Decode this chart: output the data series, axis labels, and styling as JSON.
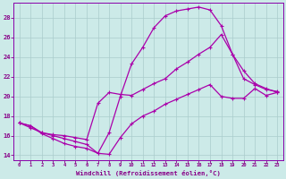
{
  "xlabel": "Windchill (Refroidissement éolien,°C)",
  "bg_color": "#cceae8",
  "line_color": "#aa00aa",
  "grid_color": "#aacccc",
  "axis_color": "#8800aa",
  "tick_label_color": "#880088",
  "xlabel_color": "#880088",
  "xlim": [
    -0.5,
    23.5
  ],
  "ylim": [
    13.5,
    29.5
  ],
  "xticks": [
    0,
    1,
    2,
    3,
    4,
    5,
    6,
    7,
    8,
    9,
    10,
    11,
    12,
    13,
    14,
    15,
    16,
    17,
    18,
    19,
    20,
    21,
    22,
    23
  ],
  "yticks": [
    14,
    16,
    18,
    20,
    22,
    24,
    26,
    28
  ],
  "line1_x": [
    0,
    1,
    2,
    3,
    4,
    5,
    6,
    7,
    8,
    9,
    10,
    11,
    12,
    13,
    14,
    15,
    16,
    17,
    18,
    19,
    20,
    21,
    22,
    23
  ],
  "line1_y": [
    17.3,
    17.0,
    16.2,
    15.7,
    15.2,
    14.9,
    14.7,
    14.2,
    16.3,
    20.0,
    23.3,
    25.0,
    27.0,
    28.2,
    28.7,
    28.9,
    29.1,
    28.8,
    27.2,
    24.3,
    21.8,
    21.2,
    20.7,
    20.5
  ],
  "line2_x": [
    0,
    1,
    2,
    3,
    4,
    5,
    6,
    7,
    8,
    9,
    10,
    11,
    12,
    13,
    14,
    15,
    16,
    17,
    18,
    19,
    20,
    21,
    22,
    23
  ],
  "line2_y": [
    17.3,
    16.8,
    16.3,
    16.0,
    15.7,
    15.4,
    15.1,
    14.2,
    14.1,
    15.8,
    17.2,
    18.0,
    18.5,
    19.2,
    19.7,
    20.2,
    20.7,
    21.2,
    20.0,
    19.8,
    19.8,
    20.8,
    20.1,
    20.4
  ],
  "line3_x": [
    0,
    1,
    2,
    3,
    4,
    5,
    6,
    7,
    8,
    9,
    10,
    11,
    12,
    13,
    14,
    15,
    16,
    17,
    18,
    19,
    20,
    21,
    22,
    23
  ],
  "line3_y": [
    17.3,
    17.0,
    16.3,
    16.1,
    16.0,
    15.8,
    15.6,
    19.3,
    20.4,
    20.2,
    20.1,
    20.7,
    21.3,
    21.8,
    22.8,
    23.5,
    24.3,
    25.0,
    26.3,
    24.3,
    22.6,
    21.3,
    20.8,
    20.4
  ],
  "marker": "+",
  "markersize": 3,
  "linewidth": 0.9
}
